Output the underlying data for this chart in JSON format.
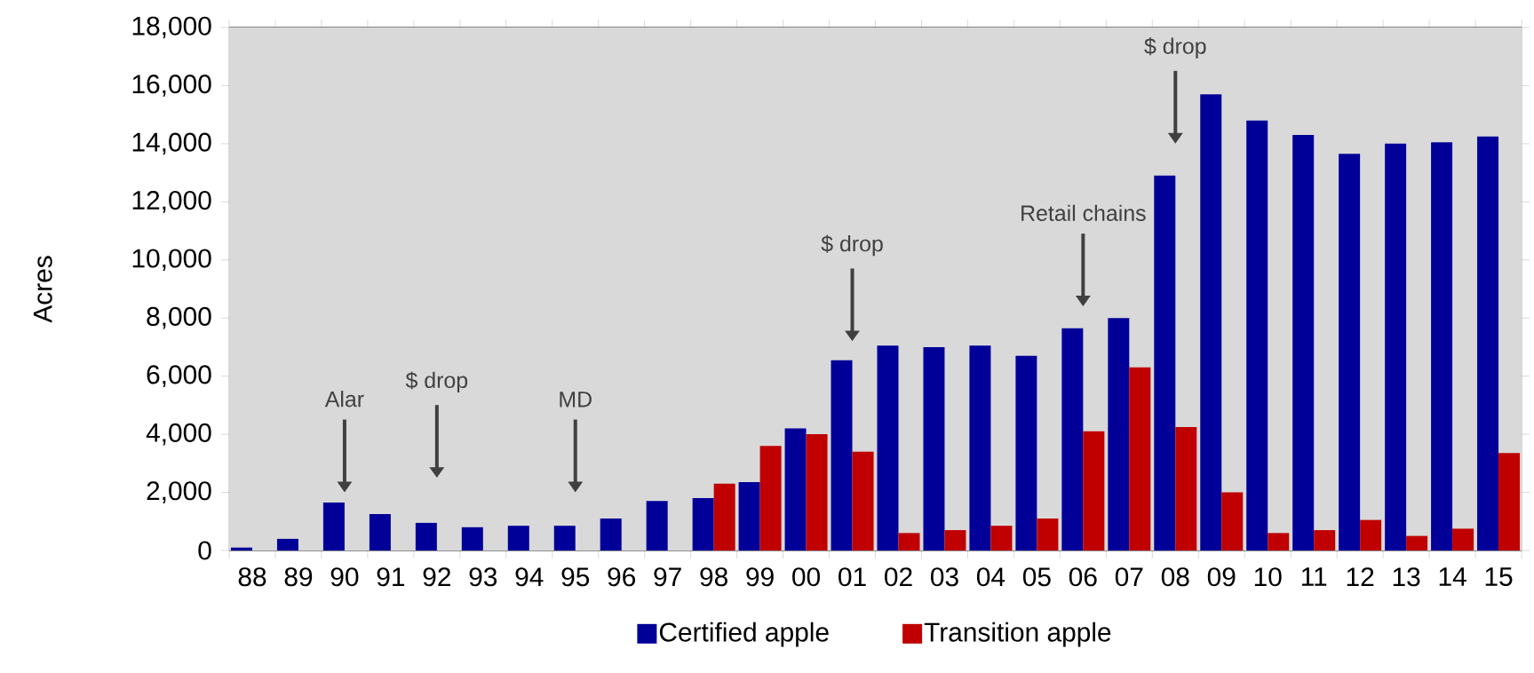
{
  "chart_data": {
    "type": "bar",
    "ylabel": "Acres",
    "categories": [
      "88",
      "89",
      "90",
      "91",
      "92",
      "93",
      "94",
      "95",
      "96",
      "97",
      "98",
      "99",
      "00",
      "01",
      "02",
      "03",
      "04",
      "05",
      "06",
      "07",
      "08",
      "09",
      "10",
      "11",
      "12",
      "13",
      "14",
      "15"
    ],
    "series": [
      {
        "name": "Certified apple",
        "color": "#000099",
        "values": [
          100,
          400,
          1650,
          1250,
          950,
          800,
          850,
          850,
          1100,
          1700,
          1800,
          2350,
          4200,
          6550,
          7050,
          7000,
          7050,
          6700,
          7650,
          8000,
          12900,
          15700,
          14800,
          14300,
          13650,
          14000,
          14050,
          14250
        ]
      },
      {
        "name": "Transition apple",
        "color": "#c00000",
        "values": [
          null,
          null,
          null,
          null,
          null,
          null,
          null,
          null,
          null,
          null,
          2300,
          3600,
          4000,
          3400,
          600,
          700,
          850,
          1100,
          4100,
          6300,
          4250,
          2000,
          600,
          700,
          1050,
          500,
          750,
          3350
        ]
      }
    ],
    "ylim": [
      0,
      18000
    ],
    "yticks": [
      0,
      {
        "value": 2000,
        "label": "2,000"
      },
      {
        "value": 4000,
        "label": "4,000"
      },
      {
        "value": 6000,
        "label": "6,000"
      },
      {
        "value": 8000,
        "label": "8,000"
      },
      {
        "value": 10000,
        "label": "10,000"
      },
      {
        "value": 12000,
        "label": "12,000"
      },
      {
        "value": 14000,
        "label": "14,000"
      },
      {
        "value": 16000,
        "label": "16,000"
      },
      {
        "value": 18000,
        "label": "18,000"
      }
    ],
    "grid": "y",
    "legend": "bottom",
    "annotations": [
      "Alar",
      "$ drop",
      "MD",
      "$ drop",
      "Retail chains",
      "$ drop"
    ]
  }
}
